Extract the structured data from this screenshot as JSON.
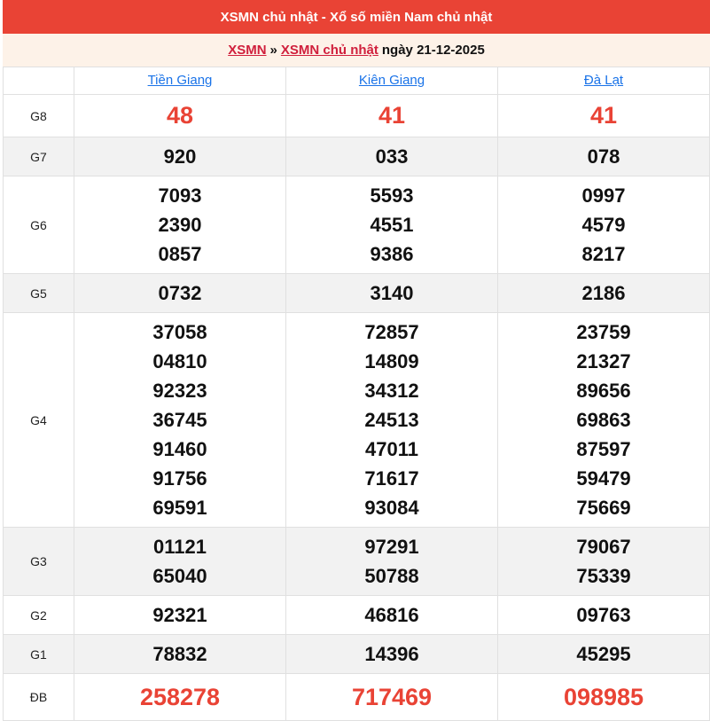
{
  "header": {
    "title": "XSMN chủ nhật - Xổ số miền Nam chủ nhật"
  },
  "breadcrumb": {
    "link1": "XSMN",
    "sep": "»",
    "link2": "XSMN chủ nhật",
    "date_text": "ngày 21-12-2025"
  },
  "provinces": [
    "Tiền Giang",
    "Kiên Giang",
    "Đà Lạt"
  ],
  "colors": {
    "header_bg": "#e94335",
    "highlight": "#e94335",
    "link": "#1a73e8",
    "breadcrumb_link": "#d01f3c"
  },
  "prizes": [
    {
      "label": "G8",
      "big": true,
      "values": [
        [
          "48"
        ],
        [
          "41"
        ],
        [
          "41"
        ]
      ]
    },
    {
      "label": "G7",
      "values": [
        [
          "920"
        ],
        [
          "033"
        ],
        [
          "078"
        ]
      ]
    },
    {
      "label": "G6",
      "values": [
        [
          "7093",
          "2390",
          "0857"
        ],
        [
          "5593",
          "4551",
          "9386"
        ],
        [
          "0997",
          "4579",
          "8217"
        ]
      ]
    },
    {
      "label": "G5",
      "values": [
        [
          "0732"
        ],
        [
          "3140"
        ],
        [
          "2186"
        ]
      ]
    },
    {
      "label": "G4",
      "values": [
        [
          "37058",
          "04810",
          "92323",
          "36745",
          "91460",
          "91756",
          "69591"
        ],
        [
          "72857",
          "14809",
          "34312",
          "24513",
          "47011",
          "71617",
          "93084"
        ],
        [
          "23759",
          "21327",
          "89656",
          "69863",
          "87597",
          "59479",
          "75669"
        ]
      ]
    },
    {
      "label": "G3",
      "values": [
        [
          "01121",
          "65040"
        ],
        [
          "97291",
          "50788"
        ],
        [
          "79067",
          "75339"
        ]
      ]
    },
    {
      "label": "G2",
      "values": [
        [
          "92321"
        ],
        [
          "46816"
        ],
        [
          "09763"
        ]
      ]
    },
    {
      "label": "G1",
      "values": [
        [
          "78832"
        ],
        [
          "14396"
        ],
        [
          "45295"
        ]
      ]
    },
    {
      "label": "ĐB",
      "big": true,
      "values": [
        [
          "258278"
        ],
        [
          "717469"
        ],
        [
          "098985"
        ]
      ]
    }
  ]
}
